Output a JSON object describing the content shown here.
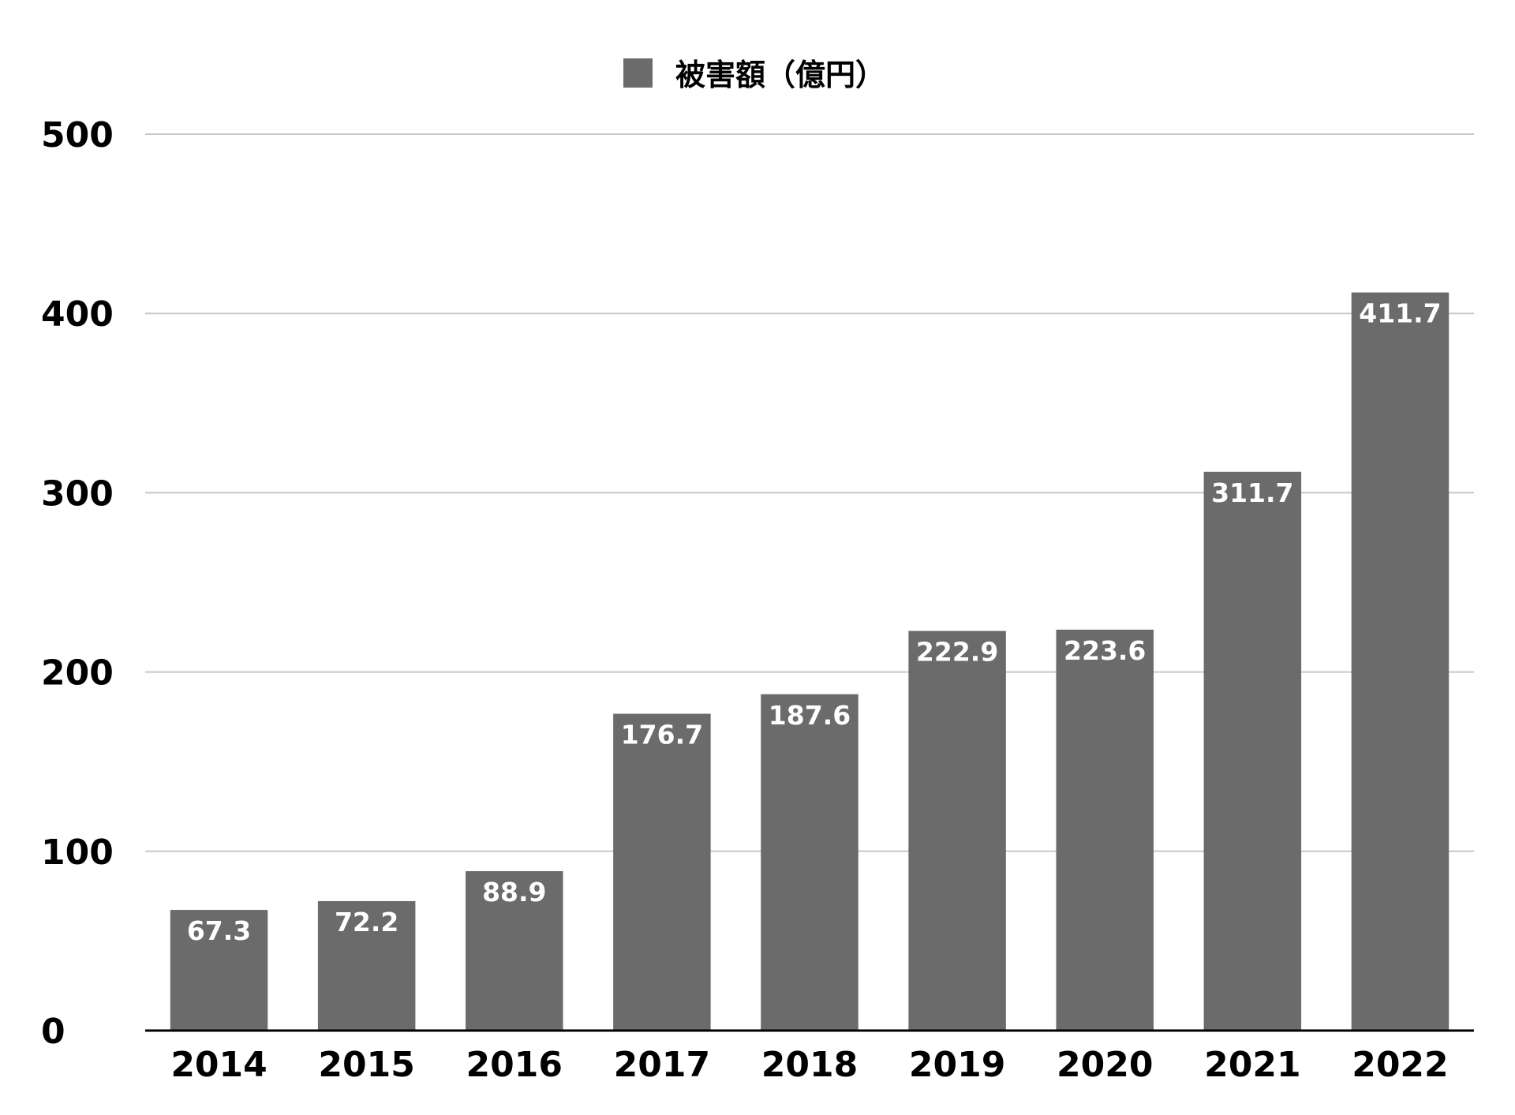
{
  "chart_data": {
    "type": "bar",
    "categories": [
      "2014",
      "2015",
      "2016",
      "2017",
      "2018",
      "2019",
      "2020",
      "2021",
      "2022"
    ],
    "series": [
      {
        "name": "被害額（億円）",
        "values": [
          67.3,
          72.2,
          88.9,
          176.7,
          187.6,
          222.9,
          223.6,
          311.7,
          411.7
        ],
        "data_labels": [
          "67.3",
          "72.2",
          "88.9",
          "176.7",
          "187.6",
          "222.9",
          "223.6",
          "311.7",
          "411.7"
        ],
        "color": "#6b6b6b"
      }
    ],
    "yticks": [
      "0",
      "100",
      "200",
      "300",
      "400",
      "500"
    ],
    "ylim": [
      0,
      500
    ],
    "grid": true,
    "legend": "top-center",
    "label_color": "#ffffff",
    "grid_color": "#c8c8c8",
    "axis_color": "#000000"
  }
}
